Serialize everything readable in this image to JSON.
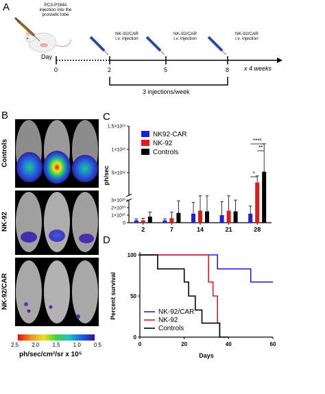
{
  "panels": {
    "a": "A",
    "b": "B",
    "c": "C",
    "d": "D"
  },
  "timeline": {
    "tumor_injection_label": "PC3-PSMA\ninjection into the\nprostatic lobe",
    "day_label": "Day",
    "days": [
      "0",
      "2",
      "5",
      "8"
    ],
    "injection_label": "NK-92/CAR\ni.v. injection",
    "repeat_label": "x 4 weeks",
    "bracket_label": "3 injections/week"
  },
  "imaging": {
    "groups": [
      "Controls",
      "NK-92",
      "NK-92/CAR"
    ],
    "colorbar_ticks": [
      "2.5",
      "2.0",
      "1.5",
      "1.0",
      "0.5"
    ],
    "colorbar_unit": "ph/sec/cm²/sr x 10⁵"
  },
  "chart_data": [
    {
      "type": "bar",
      "panel": "C",
      "ylabel": "ph/sec",
      "categories": [
        "2",
        "7",
        "14",
        "21",
        "28"
      ],
      "series": [
        {
          "name": "NK92-CAR",
          "color": "#1f1fd6",
          "values": [
            3000000000.0,
            3000000000.0,
            12000000000.0,
            10000000000.0,
            12000000000.0
          ],
          "err": [
            2000000000.0,
            2000000000.0,
            15000000000.0,
            18000000000.0,
            10000000000.0
          ]
        },
        {
          "name": "NK-92",
          "color": "#e01b1b",
          "values": [
            3000000000.0,
            6000000000.0,
            16000000000.0,
            16000000000.0,
            2900000000000.0
          ],
          "err": [
            3000000000.0,
            8000000000.0,
            16000000000.0,
            15000000000.0,
            1400000000000.0
          ]
        },
        {
          "name": "Controls",
          "color": "#000000",
          "values": [
            8000000000.0,
            13000000000.0,
            15000000000.0,
            15000000000.0,
            5200000000000.0
          ],
          "err": [
            6000000000.0,
            16000000000.0,
            16000000000.0,
            15000000000.0,
            6000000000000.0
          ]
        }
      ],
      "yticks_lower": [
        "0",
        "1×10¹⁰",
        "2×10¹⁰",
        "3×10¹⁰"
      ],
      "yticks_upper": [
        "5×10¹²",
        "1×10¹³",
        "1.5×10¹³"
      ],
      "significance": [
        "*",
        "**",
        "****"
      ]
    },
    {
      "type": "line",
      "panel": "D",
      "xlabel": "Days",
      "ylabel": "Percent survival",
      "xlim": [
        0,
        60
      ],
      "ylim": [
        0,
        100
      ],
      "xticks": [
        "0",
        "20",
        "40",
        "60"
      ],
      "yticks": [
        "0",
        "50",
        "100"
      ],
      "series": [
        {
          "name": "NK-92/CAR",
          "color": "#1f1fd6",
          "steps": [
            [
              0,
              100
            ],
            [
              35,
              100
            ],
            [
              35,
              83
            ],
            [
              50,
              83
            ],
            [
              50,
              67
            ],
            [
              60,
              67
            ]
          ]
        },
        {
          "name": "NK-92",
          "color": "#e01b1b",
          "steps": [
            [
              0,
              100
            ],
            [
              31,
              100
            ],
            [
              31,
              67
            ],
            [
              33,
              67
            ],
            [
              33,
              50
            ],
            [
              35,
              50
            ],
            [
              35,
              17
            ],
            [
              36,
              17
            ],
            [
              36,
              0
            ]
          ]
        },
        {
          "name": "Controls",
          "color": "#000000",
          "steps": [
            [
              0,
              100
            ],
            [
              8,
              100
            ],
            [
              8,
              83
            ],
            [
              20,
              83
            ],
            [
              20,
              67
            ],
            [
              22,
              67
            ],
            [
              22,
              50
            ],
            [
              25,
              50
            ],
            [
              25,
              33
            ],
            [
              28,
              33
            ],
            [
              28,
              17
            ],
            [
              36,
              17
            ],
            [
              36,
              0
            ],
            [
              40,
              0
            ]
          ]
        }
      ]
    }
  ]
}
